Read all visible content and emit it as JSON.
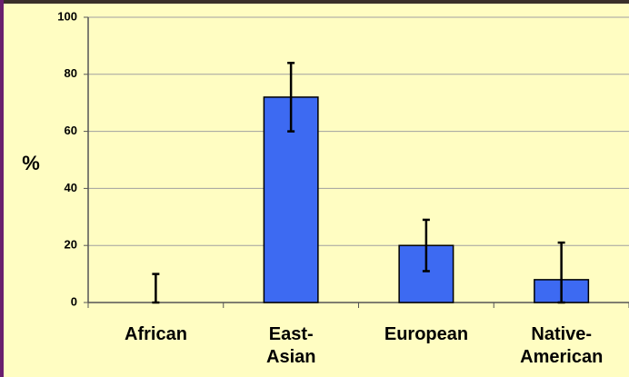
{
  "chart_data": {
    "type": "bar",
    "y_label": "%",
    "categories": [
      "African",
      "East-\nAsian",
      "European",
      "Native-\nAmerican"
    ],
    "series": [
      {
        "name": null,
        "color": "#3d6af2",
        "values": [
          0,
          72,
          20,
          8
        ]
      }
    ],
    "errors": [
      10,
      12,
      9,
      13
    ],
    "ylim": [
      0,
      100
    ],
    "yticks": [
      0,
      20,
      40,
      60,
      80,
      100
    ],
    "grid": true
  }
}
